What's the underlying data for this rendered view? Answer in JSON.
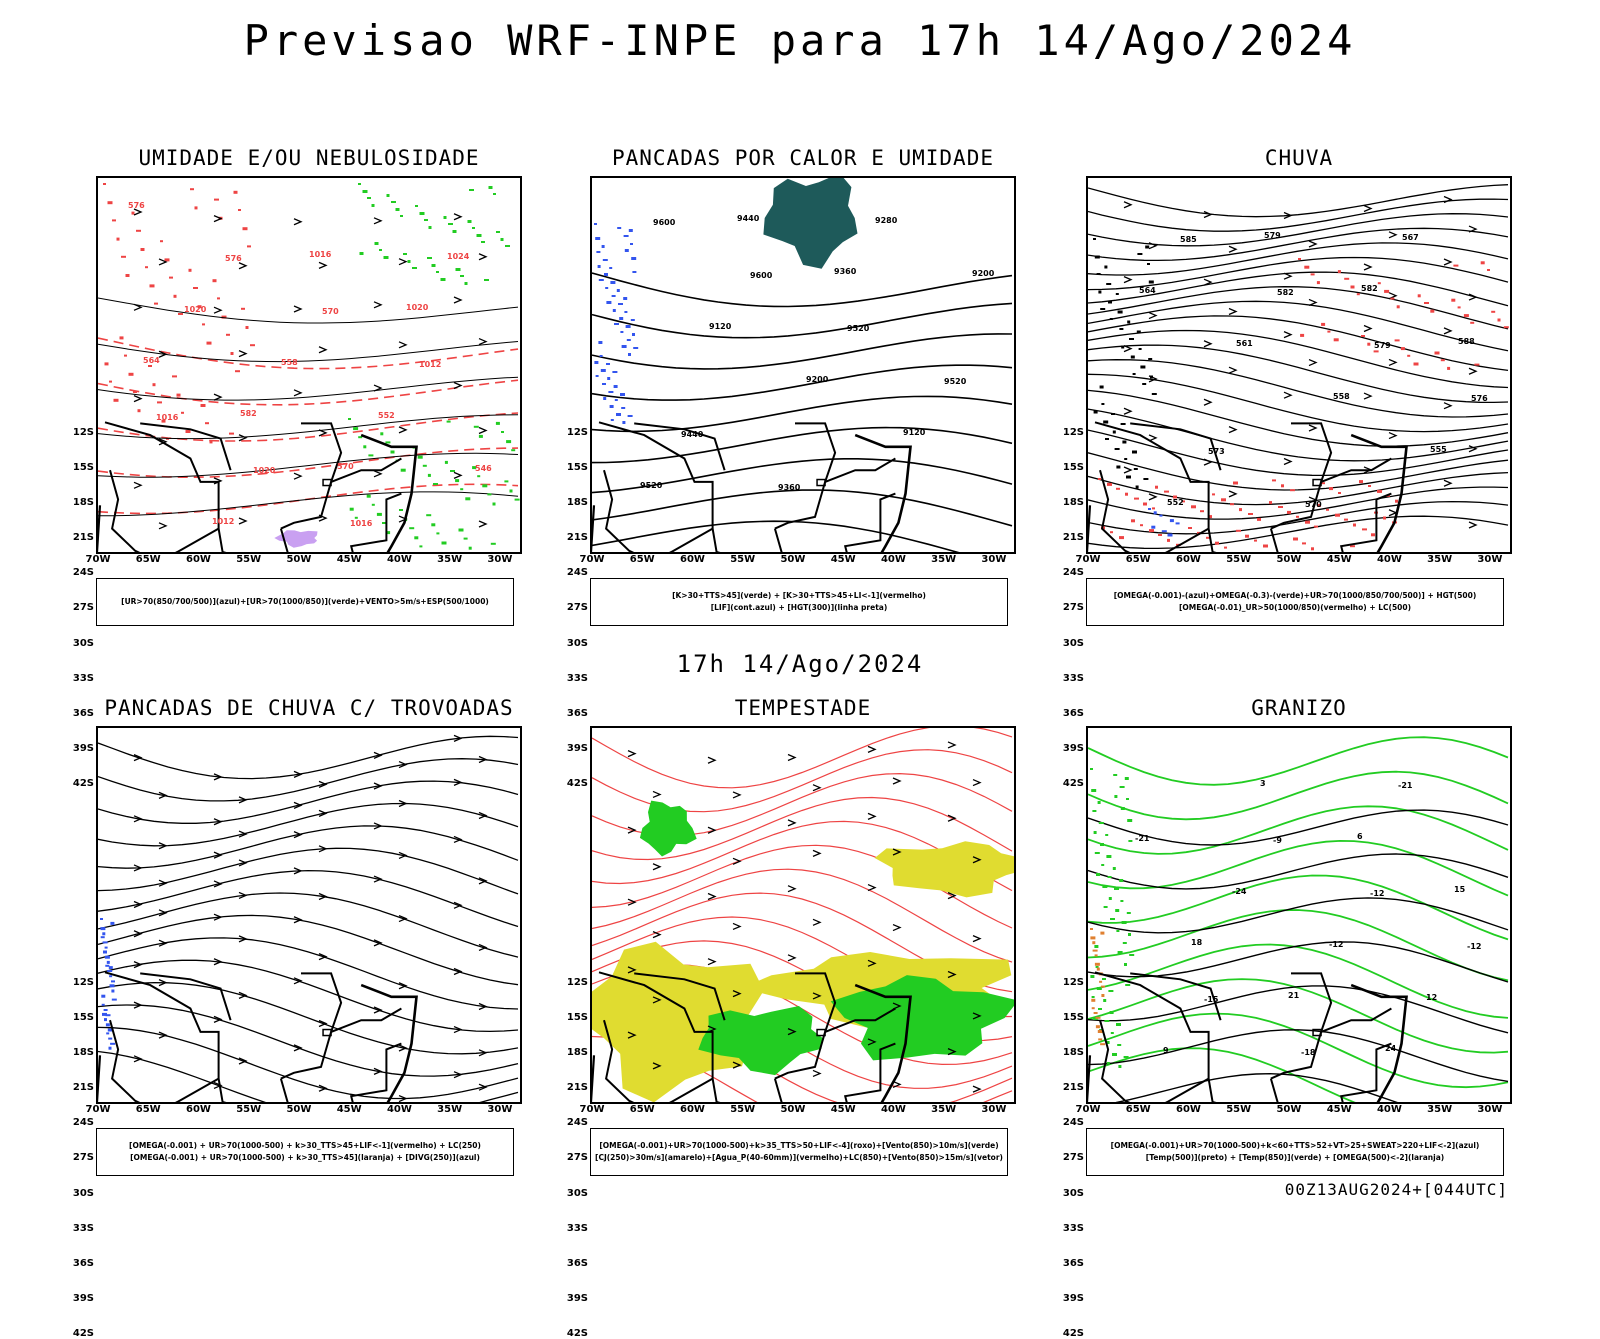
{
  "header": {
    "title": "Previsao WRF-INPE  para 17h 14/Ago/2024",
    "subtitle": "17h 14/Ago/2024"
  },
  "axes": {
    "lat_labels": [
      "12S",
      "15S",
      "18S",
      "21S",
      "24S",
      "27S",
      "30S",
      "33S",
      "36S",
      "39S",
      "42S"
    ],
    "lon_labels": [
      "70W",
      "65W",
      "60W",
      "55W",
      "50W",
      "45W",
      "40W",
      "35W",
      "30W"
    ]
  },
  "colors": {
    "red": "#ee4444",
    "green": "#22cc22",
    "blue": "#3355ee",
    "teal": "#1e5a5a",
    "yellow": "#e0dc30",
    "purple": "#bb88ee",
    "orange": "#e08030"
  },
  "panels": [
    {
      "id": "umidade",
      "title": "UMIDADE E/OU NEBULOSIDADE",
      "legend": [
        "[UR>70(850/700/500)](azul)+[UR>70(1000/850)](verde)+VENTO>5m/s+ESP(500/1000)"
      ],
      "contour_labels": [
        "576",
        "576",
        "570",
        "1012",
        "1016",
        "1020",
        "1016",
        "1024",
        "1020",
        "558",
        "552",
        "546",
        "1012",
        "1016",
        "1020",
        "564",
        "582",
        "570"
      ]
    },
    {
      "id": "pancadas-calor",
      "title": "PANCADAS POR CALOR E UMIDADE",
      "legend": [
        "[K>30+TTS>45](verde) + [K>30+TTS>45+LI<-1](vermelho)",
        "[LIF](cont.azul) + [HGT(300)](linha preta)"
      ],
      "contour_labels": [
        "9600",
        "9600",
        "9520",
        "9520",
        "9440",
        "9360",
        "9280",
        "9200",
        "9120",
        "9200",
        "9120",
        "9520",
        "9440",
        "9360"
      ]
    },
    {
      "id": "chuva",
      "title": "CHUVA",
      "legend": [
        "[OMEGA(-0.001)-(azul)+OMEGA(-0.3)-(verde)+UR>70(1000/850/700/500)] + HGT(500)",
        "[OMEGA(-0.01)_UR>50(1000/850)(vermelho) + LC(500)"
      ],
      "contour_labels": [
        "585",
        "582",
        "579",
        "576",
        "573",
        "570",
        "567",
        "564",
        "561",
        "558",
        "555",
        "552",
        "579",
        "582",
        "588"
      ]
    },
    {
      "id": "pancadas-trovoadas",
      "title": "PANCADAS DE CHUVA C/ TROVOADAS",
      "legend": [
        "[OMEGA(-0.001) + UR>70(1000-500) + k>30_TTS>45+LIF<-1](vermelho) + LC(250)",
        "[OMEGA(-0.001) + UR>70(1000-500) + k>30_TTS>45](laranja) + [DIVG(250)](azul)"
      ],
      "contour_labels": []
    },
    {
      "id": "tempestade",
      "title": "TEMPESTADE",
      "legend": [
        "[OMEGA(-0.001)+UR>70(1000-500)+k>35_TTS>50+LIF<-4](roxo)+[Vento(850)>10m/s](verde)",
        "[CJ(250)>30m/s](amarelo)+[Agua_P(40-60mm)](vermelho)+LC(850)+[Vento(850)>15m/s](vetor)"
      ],
      "contour_labels": []
    },
    {
      "id": "granizo",
      "title": "GRANIZO",
      "legend": [
        "[OMEGA(-0.001)+UR>70(1000-500)+k<60+TTS>52+VT>25+SWEAT>220+LIF<-2](azul)",
        "[Temp(500)](preto) + [Temp(850)](verde) + [OMEGA(500)<-2](laranja)"
      ],
      "contour_labels": [
        "-9",
        "-12",
        "-12",
        "-15",
        "-18",
        "-21",
        "-21",
        "-24",
        "-12",
        "12",
        "9",
        "3",
        "6",
        "15",
        "18",
        "21",
        "24"
      ]
    }
  ],
  "footer": {
    "run_info": "00Z13AUG2024+[044UTC]"
  }
}
